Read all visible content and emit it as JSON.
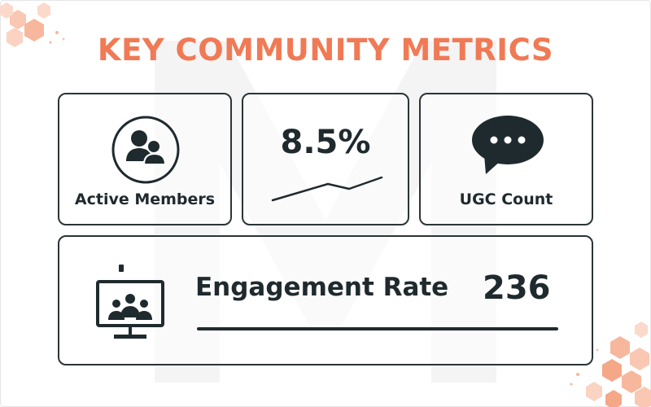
{
  "title": "KEY COMMUNITY METRICS",
  "colors": {
    "accent": "#f07a55",
    "text": "#1f2a2e",
    "border": "#2b3438"
  },
  "cards": [
    {
      "id": "active-members",
      "label": "Active Members",
      "icon": "users-icon"
    },
    {
      "id": "trend",
      "value": "8.5%",
      "icon": "trend-line-icon"
    },
    {
      "id": "ugc-count",
      "label": "UGC Count",
      "icon": "chat-bubble-icon"
    }
  ],
  "engagement": {
    "label": "Engagement Rate",
    "value": "236",
    "icon": "video-conference-icon"
  }
}
